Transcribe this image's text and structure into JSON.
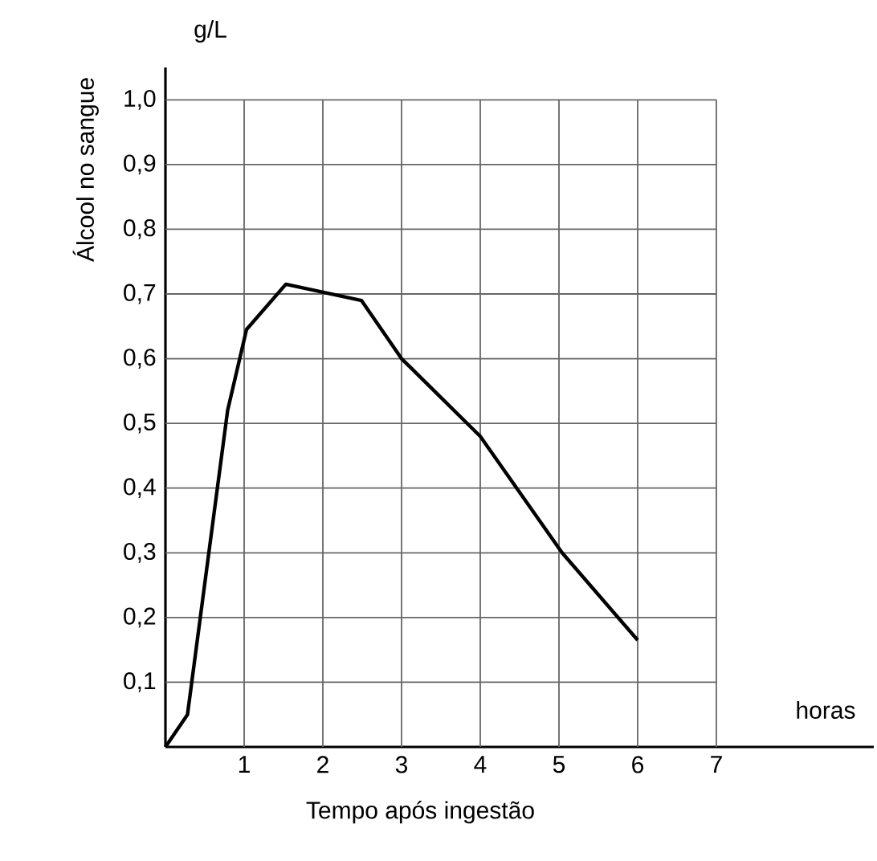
{
  "chart_data": {
    "type": "line",
    "xlabel": "Tempo após ingestão",
    "ylabel": "Álcool no sangue",
    "annotations": [
      "g/L",
      "horas"
    ],
    "x": [
      0,
      0.28,
      0.79,
      1.03,
      1.53,
      2.49,
      3.0,
      4.0,
      5.04,
      6.0
    ],
    "values": [
      0,
      0.05,
      0.52,
      0.645,
      0.715,
      0.69,
      0.6,
      0.48,
      0.3,
      0.165
    ],
    "color": "#000000",
    "marker": "none",
    "line_style": "solid",
    "grid": true,
    "xlim": [
      0,
      9
    ],
    "ylim": [
      0,
      1.05
    ],
    "xticks": [
      1,
      2,
      3,
      4,
      5,
      6,
      7
    ],
    "yticks": [
      {
        "value": 0.1,
        "label": "0,1"
      },
      {
        "value": 0.2,
        "label": "0,2"
      },
      {
        "value": 0.3,
        "label": "0,3"
      },
      {
        "value": 0.4,
        "label": "0,4"
      },
      {
        "value": 0.5,
        "label": "0,5"
      },
      {
        "value": 0.6,
        "label": "0,6"
      },
      {
        "value": 0.7,
        "label": "0,7"
      },
      {
        "value": 0.8,
        "label": "0,8"
      },
      {
        "value": 0.9,
        "label": "0,9"
      },
      {
        "value": 1.0,
        "label": "1,0"
      }
    ]
  }
}
